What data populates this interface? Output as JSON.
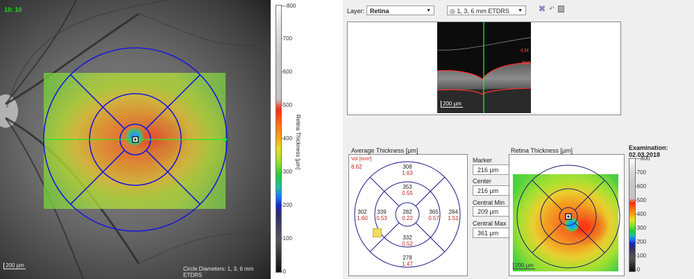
{
  "left_image": {
    "overlay_label": "10: 10",
    "scale_label": "200 µm",
    "circle_caption": "Circle Diameters: 1, 3, 6 mm ETDRS"
  },
  "scale_left": {
    "title": "Retina Thickness [µm]",
    "ticks": [
      "800",
      "700",
      "600",
      "500",
      "400",
      "300",
      "200",
      "100",
      "0"
    ]
  },
  "toolbar": {
    "layer_label": "Layer:",
    "layer_value": "Retina",
    "grid_value": "1, 3, 6 mm ETDRS",
    "icons": [
      "grid-icon",
      "expand-icon",
      "undo-icon",
      "save-icon"
    ]
  },
  "bscan": {
    "label_top": "ILM",
    "label_bottom": "BM",
    "scale_label": "200 µm"
  },
  "average_thickness": {
    "title": "Average Thickness [µm]",
    "vol_label": "Vol [mm³]",
    "vol_value": "8.62",
    "sectors": {
      "outer_top": [
        "308",
        "1.63"
      ],
      "inner_top": [
        "353",
        "0.55"
      ],
      "outer_left": [
        "302",
        "1.60"
      ],
      "inner_left": [
        "339",
        "0.53"
      ],
      "center": [
        "282",
        "0.22"
      ],
      "inner_right": [
        "365",
        "0.57"
      ],
      "outer_right": [
        "284",
        "1.51"
      ],
      "inner_bottom": [
        "332",
        "0.52"
      ],
      "outer_bottom": [
        "278",
        "1.47"
      ]
    }
  },
  "stats": [
    {
      "label": "Marker",
      "value": "216 µm"
    },
    {
      "label": "Center",
      "value": "216 µm"
    },
    {
      "label": "Central Min",
      "value": "209 µm"
    },
    {
      "label": "Central Max",
      "value": "361 µm"
    }
  ],
  "retina_thickness": {
    "title": "Retina Thickness [µm]",
    "scale_label": "200 µm",
    "ticks": [
      "800",
      "700",
      "600",
      "500",
      "400",
      "300",
      "200",
      "100",
      "0"
    ]
  },
  "examination": "Examination: 02.03.2018"
}
